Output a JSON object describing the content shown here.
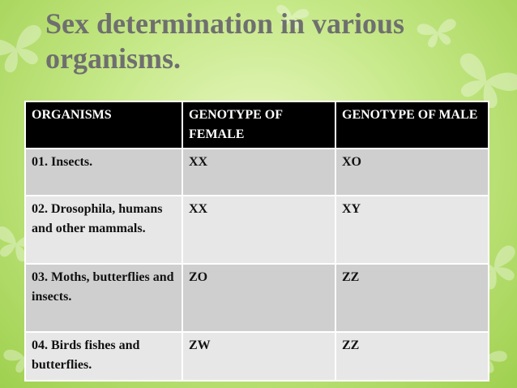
{
  "slide": {
    "title_line1": "Sex determination in various",
    "title_line2": "organisms."
  },
  "table": {
    "headers": [
      "ORGANISMS",
      "GENOTYPE OF FEMALE",
      "GENOTYPE OF MALE"
    ],
    "rows": [
      [
        "01. Insects.",
        "XX",
        "XO"
      ],
      [
        "02. Drosophila, humans and other mammals.",
        "XX",
        "XY"
      ],
      [
        "03. Moths, butterflies and insects.",
        "ZO",
        "ZZ"
      ],
      [
        "04. Birds fishes and butterflies.",
        "ZW",
        "ZZ"
      ]
    ]
  },
  "colors": {
    "background_center": "#e9f7c4",
    "background_edge": "#9fd04e",
    "title": "#6f6f6f",
    "header_bg": "#000000",
    "row_dark": "#cfcfcf",
    "row_light": "#e7e7e7"
  },
  "icons": [
    "butterfly-icon"
  ]
}
